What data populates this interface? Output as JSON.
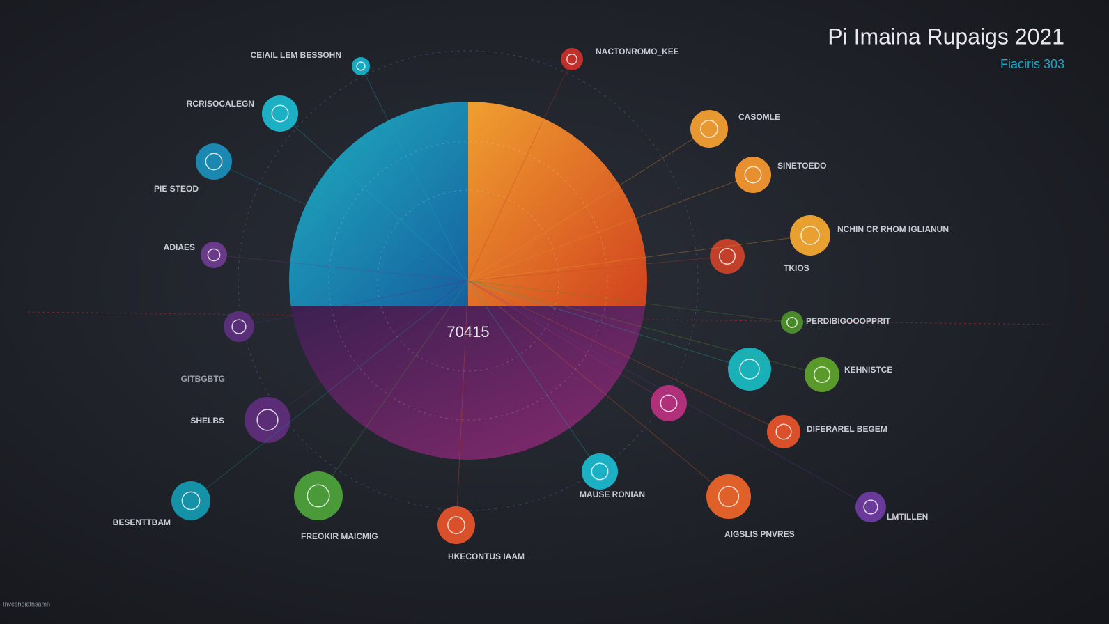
{
  "header": {
    "title": "Pi Imaina Rupaigs 2021",
    "subtitle": "Fiaciris 303"
  },
  "center_label": "70415",
  "nodes": [
    {
      "label": "CEIAIL LEM BESSOHN"
    },
    {
      "label": "RCRISOCALEGN"
    },
    {
      "label": "PIE STEOD"
    },
    {
      "label": "ADIAES"
    },
    {
      "label": "SHELBS"
    },
    {
      "label": "BESENTTBAM"
    },
    {
      "label": "FREOKIR MAICMIG"
    },
    {
      "label": "HKECONTUS IAAM"
    },
    {
      "label": "MAUSE RONIAN"
    },
    {
      "label": "AIGSLIS PNVRES"
    },
    {
      "label": "DIFERAREL BEGEM"
    },
    {
      "label": "LMTILLEN"
    },
    {
      "label": "KEHNISTCE"
    },
    {
      "label": "PERDIBIGOOOPPRIT"
    },
    {
      "label": "TKIOS"
    },
    {
      "label": "NCHIN CR RHOM IGLIANUN"
    },
    {
      "label": "SINETOEDO"
    },
    {
      "label": "CASOMLE"
    },
    {
      "label": "NACTONROMO_KEE"
    }
  ],
  "annotations": [
    "GITBGBTG"
  ],
  "footer": "Inveshoiathsamn"
}
